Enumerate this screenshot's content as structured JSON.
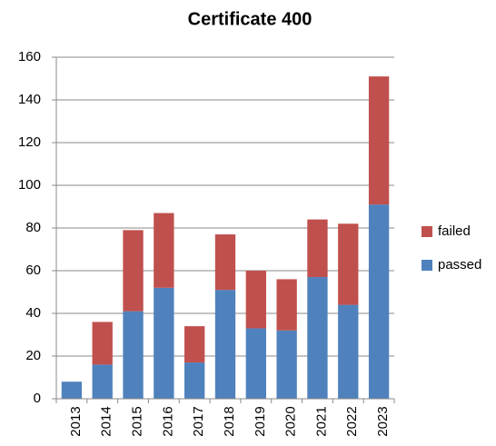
{
  "chart_data": {
    "type": "stacked_bar",
    "title": "Certificate  400",
    "categories": [
      "2013",
      "2014",
      "2015",
      "2016",
      "2017",
      "2018",
      "2019",
      "2020",
      "2021",
      "2022",
      "2023"
    ],
    "series": [
      {
        "name": "passed",
        "color": "#4f81bd",
        "values": [
          8,
          16,
          41,
          52,
          17,
          51,
          33,
          32,
          57,
          44,
          91
        ]
      },
      {
        "name": "failed",
        "color": "#c0504d",
        "values": [
          0,
          20,
          38,
          35,
          17,
          26,
          27,
          24,
          27,
          38,
          60
        ]
      }
    ],
    "ylim": [
      0,
      160
    ],
    "yticks": [
      0,
      20,
      40,
      60,
      80,
      100,
      120,
      140,
      160
    ],
    "grid": true,
    "legend": "right"
  }
}
